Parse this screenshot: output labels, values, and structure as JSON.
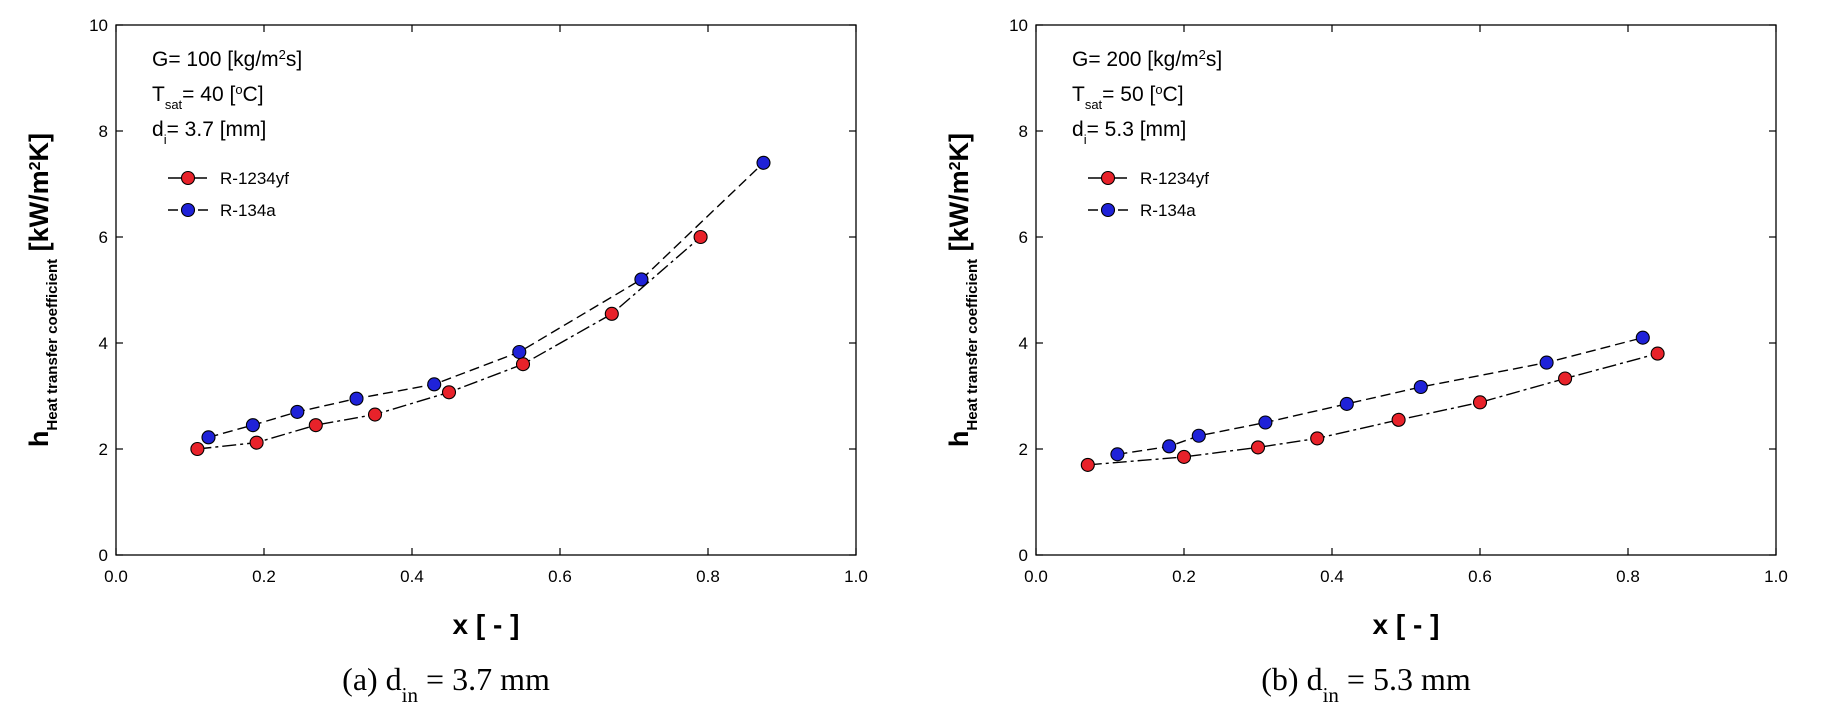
{
  "chart_data": [
    {
      "type": "line",
      "caption": {
        "main": "(a) d",
        "sub": "in",
        "rest": " = 3.7 mm"
      },
      "xlabel": "x [ - ]",
      "ylabel": {
        "main": "h",
        "sub": "Heat transfer coefficient",
        "unit_a": " [kW/m",
        "sup": "2",
        "unit_b": "K]"
      },
      "xlim": [
        0.0,
        1.0
      ],
      "ylim": [
        0,
        10
      ],
      "xticks": [
        "0.0",
        "0.2",
        "0.4",
        "0.6",
        "0.8",
        "1.0"
      ],
      "yticks": [
        "0",
        "2",
        "4",
        "6",
        "8",
        "10"
      ],
      "annotations": [
        {
          "parts": [
            {
              "t": "G= 100 [kg/m"
            },
            {
              "t": "2",
              "sup": true
            },
            {
              "t": "s]"
            }
          ]
        },
        {
          "parts": [
            {
              "t": "T"
            },
            {
              "t": "sat",
              "sub": true
            },
            {
              "t": "= 40 ["
            },
            {
              "t": "o",
              "sup": true
            },
            {
              "t": "C]"
            }
          ]
        },
        {
          "parts": [
            {
              "t": "d"
            },
            {
              "t": "i",
              "sub": true
            },
            {
              "t": "= 3.7 [mm]"
            }
          ]
        }
      ],
      "series": [
        {
          "name": "R-1234yf",
          "color": "#e8222a",
          "x": [
            0.11,
            0.19,
            0.27,
            0.35,
            0.45,
            0.55,
            0.67,
            0.79
          ],
          "y": [
            2.0,
            2.12,
            2.45,
            2.65,
            3.07,
            3.6,
            4.55,
            6.0
          ]
        },
        {
          "name": "R-134a",
          "color": "#1f22d8",
          "x": [
            0.125,
            0.185,
            0.245,
            0.325,
            0.43,
            0.545,
            0.71,
            0.875
          ],
          "y": [
            2.22,
            2.45,
            2.7,
            2.95,
            3.22,
            3.83,
            5.2,
            7.4
          ]
        }
      ]
    },
    {
      "type": "line",
      "caption": {
        "main": "(b) d",
        "sub": "in",
        "rest": " = 5.3 mm"
      },
      "xlabel": "x [ - ]",
      "ylabel": {
        "main": "h",
        "sub": "Heat transfer coefficient",
        "unit_a": " [kW/m",
        "sup": "2",
        "unit_b": "K]"
      },
      "xlim": [
        0.0,
        1.0
      ],
      "ylim": [
        0,
        10
      ],
      "xticks": [
        "0.0",
        "0.2",
        "0.4",
        "0.6",
        "0.8",
        "1.0"
      ],
      "yticks": [
        "0",
        "2",
        "4",
        "6",
        "8",
        "10"
      ],
      "annotations": [
        {
          "parts": [
            {
              "t": "G= 200 [kg/m"
            },
            {
              "t": "2",
              "sup": true
            },
            {
              "t": "s]"
            }
          ]
        },
        {
          "parts": [
            {
              "t": "T"
            },
            {
              "t": "sat",
              "sub": true
            },
            {
              "t": "= 50 ["
            },
            {
              "t": "o",
              "sup": true
            },
            {
              "t": "C]"
            }
          ]
        },
        {
          "parts": [
            {
              "t": "d"
            },
            {
              "t": "i",
              "sub": true
            },
            {
              "t": "= 5.3 [mm]"
            }
          ]
        }
      ],
      "series": [
        {
          "name": "R-1234yf",
          "color": "#e8222a",
          "x": [
            0.07,
            0.2,
            0.3,
            0.38,
            0.49,
            0.6,
            0.715,
            0.84
          ],
          "y": [
            1.7,
            1.85,
            2.03,
            2.2,
            2.55,
            2.88,
            3.33,
            3.8
          ]
        },
        {
          "name": "R-134a",
          "color": "#1f22d8",
          "x": [
            0.11,
            0.18,
            0.22,
            0.31,
            0.42,
            0.52,
            0.69,
            0.82
          ],
          "y": [
            1.9,
            2.05,
            2.25,
            2.5,
            2.85,
            3.17,
            3.63,
            4.1
          ]
        }
      ]
    }
  ]
}
